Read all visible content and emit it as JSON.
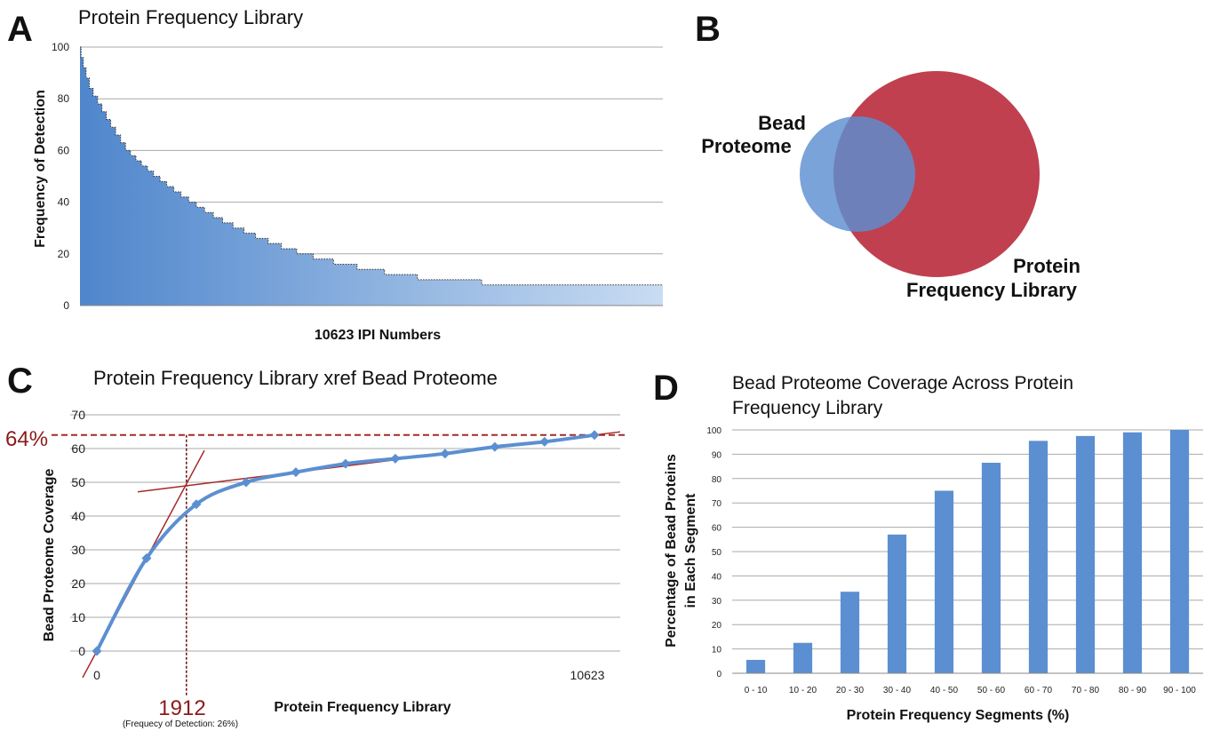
{
  "panels": {
    "a": {
      "letter": "A",
      "chart_data": {
        "type": "area",
        "title": "Protein Frequency Library",
        "xlabel": "10623 IPI Numbers",
        "ylabel": "Frequency of Detection",
        "yticks": [
          "0",
          "20",
          "40",
          "60",
          "80",
          "100"
        ],
        "ylim": [
          0,
          100
        ],
        "xlim": [
          0,
          10623
        ],
        "grid": true,
        "steps": [
          [
            0,
            100
          ],
          [
            20,
            96
          ],
          [
            60,
            92
          ],
          [
            110,
            88
          ],
          [
            170,
            84
          ],
          [
            240,
            81
          ],
          [
            320,
            78
          ],
          [
            400,
            75
          ],
          [
            480,
            72
          ],
          [
            560,
            69
          ],
          [
            650,
            66
          ],
          [
            740,
            63
          ],
          [
            830,
            60
          ],
          [
            920,
            58
          ],
          [
            1020,
            56
          ],
          [
            1120,
            54
          ],
          [
            1230,
            52
          ],
          [
            1340,
            50
          ],
          [
            1460,
            48
          ],
          [
            1580,
            46
          ],
          [
            1710,
            44
          ],
          [
            1840,
            42
          ],
          [
            1980,
            40
          ],
          [
            2120,
            38
          ],
          [
            2270,
            36
          ],
          [
            2430,
            34
          ],
          [
            2600,
            32
          ],
          [
            2790,
            30
          ],
          [
            2990,
            28
          ],
          [
            3200,
            26
          ],
          [
            3430,
            24
          ],
          [
            3670,
            22
          ],
          [
            3950,
            20
          ],
          [
            4250,
            18
          ],
          [
            4620,
            16
          ],
          [
            5050,
            14
          ],
          [
            5550,
            12
          ],
          [
            6150,
            10
          ],
          [
            7320,
            8
          ],
          [
            10623,
            8
          ]
        ],
        "fill_color": "#5b8fd1"
      }
    },
    "b": {
      "letter": "B",
      "chart_data": {
        "type": "venn",
        "sets": [
          {
            "name": "Bead Proteome",
            "color": "#5b8fd1"
          },
          {
            "name": "Protein Frequency Library",
            "color": "#c0404f"
          }
        ]
      },
      "labels": {
        "bead_line1": "Bead",
        "bead_line2": "Proteome",
        "pfl_line1": "Protein",
        "pfl_line2": "Frequency Library"
      }
    },
    "c": {
      "letter": "C",
      "chart_data": {
        "type": "line",
        "title": "Protein Frequency Library xref Bead Proteome",
        "xlabel": "Protein Frequency Library",
        "ylabel": "Bead Proteome Coverage",
        "yticks": [
          "0",
          "10",
          "20",
          "30",
          "40",
          "50",
          "60",
          "70"
        ],
        "ylim": [
          0,
          70
        ],
        "xlim": [
          0,
          10623
        ],
        "x_tick_labels": [
          "0",
          "10623"
        ],
        "grid": true,
        "series": [
          {
            "x": [
              0,
              1062,
              2124,
              3186,
              4248,
              5310,
              6372,
              7434,
              8496,
              9558,
              10623
            ],
            "y": [
              0,
              27.5,
              43.5,
              50,
              53,
              55.5,
              57,
              58.5,
              60.5,
              62,
              64
            ]
          }
        ],
        "line_color": "#5b8fd1",
        "tangent_color": "#a52a2a",
        "callouts": {
          "percent": "64%",
          "percent_value": 64,
          "x_value": "1912",
          "x_value_num": 1912,
          "x_note": "(Frequecy of Detection: 26%)"
        }
      }
    },
    "d": {
      "letter": "D",
      "chart_data": {
        "type": "bar",
        "title_line1": "Bead Proteome Coverage Across Protein",
        "title_line2": "Frequency Library",
        "xlabel": "Protein Frequency Segments (%)",
        "ylabel_line1": "Percentage of Bead Proteins",
        "ylabel_line2": "in Each Segment",
        "categories": [
          "0 - 10",
          "10 - 20",
          "20 - 30",
          "30 - 40",
          "40 - 50",
          "50 - 60",
          "60 - 70",
          "70 - 80",
          "80 - 90",
          "90 - 100"
        ],
        "values": [
          5.5,
          12.5,
          33.5,
          57,
          75,
          86.5,
          95.5,
          97.5,
          99,
          100
        ],
        "yticks": [
          "0",
          "10",
          "20",
          "30",
          "40",
          "50",
          "60",
          "70",
          "80",
          "90",
          "100"
        ],
        "ylim": [
          0,
          100
        ],
        "grid": true,
        "bar_color": "#5b8fd1"
      }
    }
  }
}
